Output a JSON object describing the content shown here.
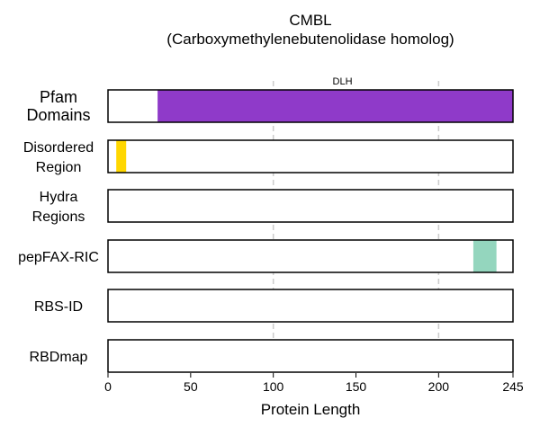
{
  "chart_data": {
    "type": "bar",
    "title_lines": [
      "CMBL",
      "(Carboxymethylenebutenolidase homolog)"
    ],
    "xlabel": "Protein Length",
    "xlim": [
      0,
      245
    ],
    "xticks": [
      0,
      50,
      100,
      150,
      200,
      245
    ],
    "gridlines_at": [
      100,
      200
    ],
    "tracks": [
      {
        "label_lines": [
          "Pfam",
          "Domains"
        ],
        "regions": [
          {
            "start": 30,
            "end": 245,
            "color": "#8f3ac9",
            "label": "DLH"
          }
        ]
      },
      {
        "label_lines": [
          "Disordered",
          "Region"
        ],
        "regions": [
          {
            "start": 5,
            "end": 11,
            "color": "#ffd700",
            "label": ""
          }
        ]
      },
      {
        "label_lines": [
          "Hydra",
          "Regions"
        ],
        "regions": []
      },
      {
        "label_lines": [
          "pepFAX-RIC"
        ],
        "regions": [
          {
            "start": 221,
            "end": 235,
            "color": "#94d6be",
            "label": ""
          }
        ]
      },
      {
        "label_lines": [
          "RBS-ID"
        ],
        "regions": []
      },
      {
        "label_lines": [
          "RBDmap"
        ],
        "regions": []
      }
    ]
  }
}
